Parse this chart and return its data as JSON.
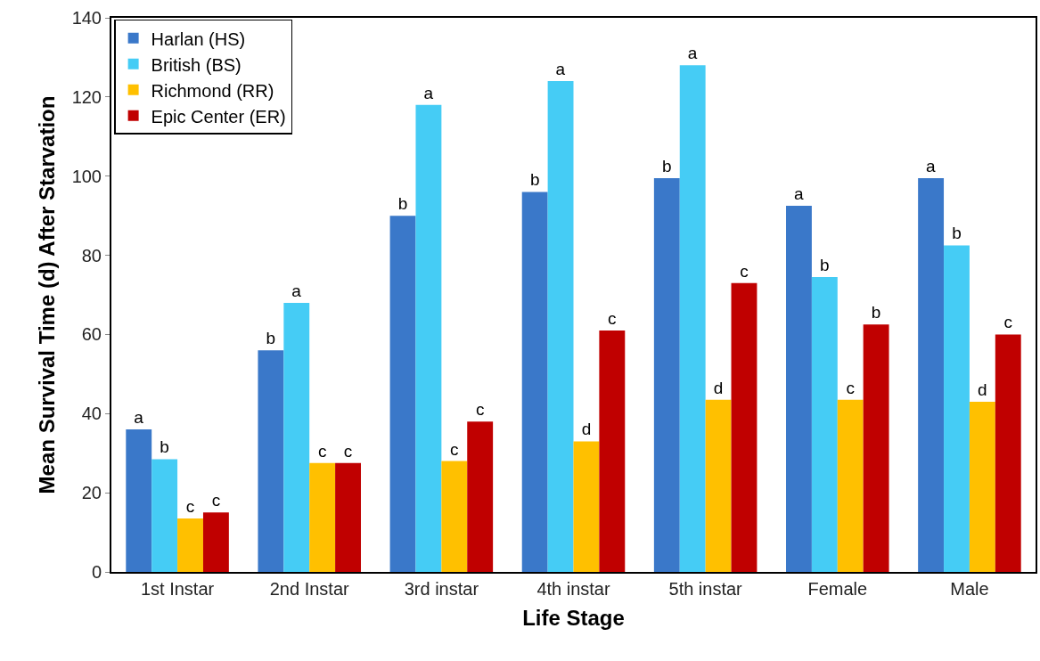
{
  "chart_data": {
    "type": "bar",
    "xlabel": "Life Stage",
    "ylabel": "Mean Survival Time (d) After Starvation",
    "categories": [
      "1st Instar",
      "2nd Instar",
      "3rd instar",
      "4th instar",
      "5th instar",
      "Female",
      "Male"
    ],
    "series": [
      {
        "name": "Harlan (HS)",
        "color": "#3a78c9",
        "values": [
          36,
          56,
          90,
          96,
          99.5,
          92.5,
          99.5
        ],
        "value_labels": [
          "a",
          "b",
          "b",
          "b",
          "b",
          "a",
          "a"
        ]
      },
      {
        "name": "British (BS)",
        "color": "#45ccf5",
        "values": [
          28.5,
          68,
          118,
          124,
          128,
          74.5,
          82.5
        ],
        "value_labels": [
          "b",
          "a",
          "a",
          "a",
          "a",
          "b",
          "b"
        ]
      },
      {
        "name": "Richmond (RR)",
        "color": "#ffc000",
        "values": [
          13.5,
          27.5,
          28,
          33,
          43.5,
          43.5,
          43
        ],
        "value_labels": [
          "c",
          "c",
          "c",
          "d",
          "d",
          "c",
          "d"
        ]
      },
      {
        "name": "Epic Center (ER)",
        "color": "#c00000",
        "values": [
          15,
          27.5,
          38,
          61,
          73,
          62.5,
          60
        ],
        "value_labels": [
          "c",
          "c",
          "c",
          "c",
          "c",
          "b",
          "c"
        ]
      }
    ],
    "ylim": [
      0,
      140
    ],
    "yticks": [
      0,
      20,
      40,
      60,
      80,
      100,
      120,
      140
    ],
    "grid": false,
    "legend": "top left"
  }
}
